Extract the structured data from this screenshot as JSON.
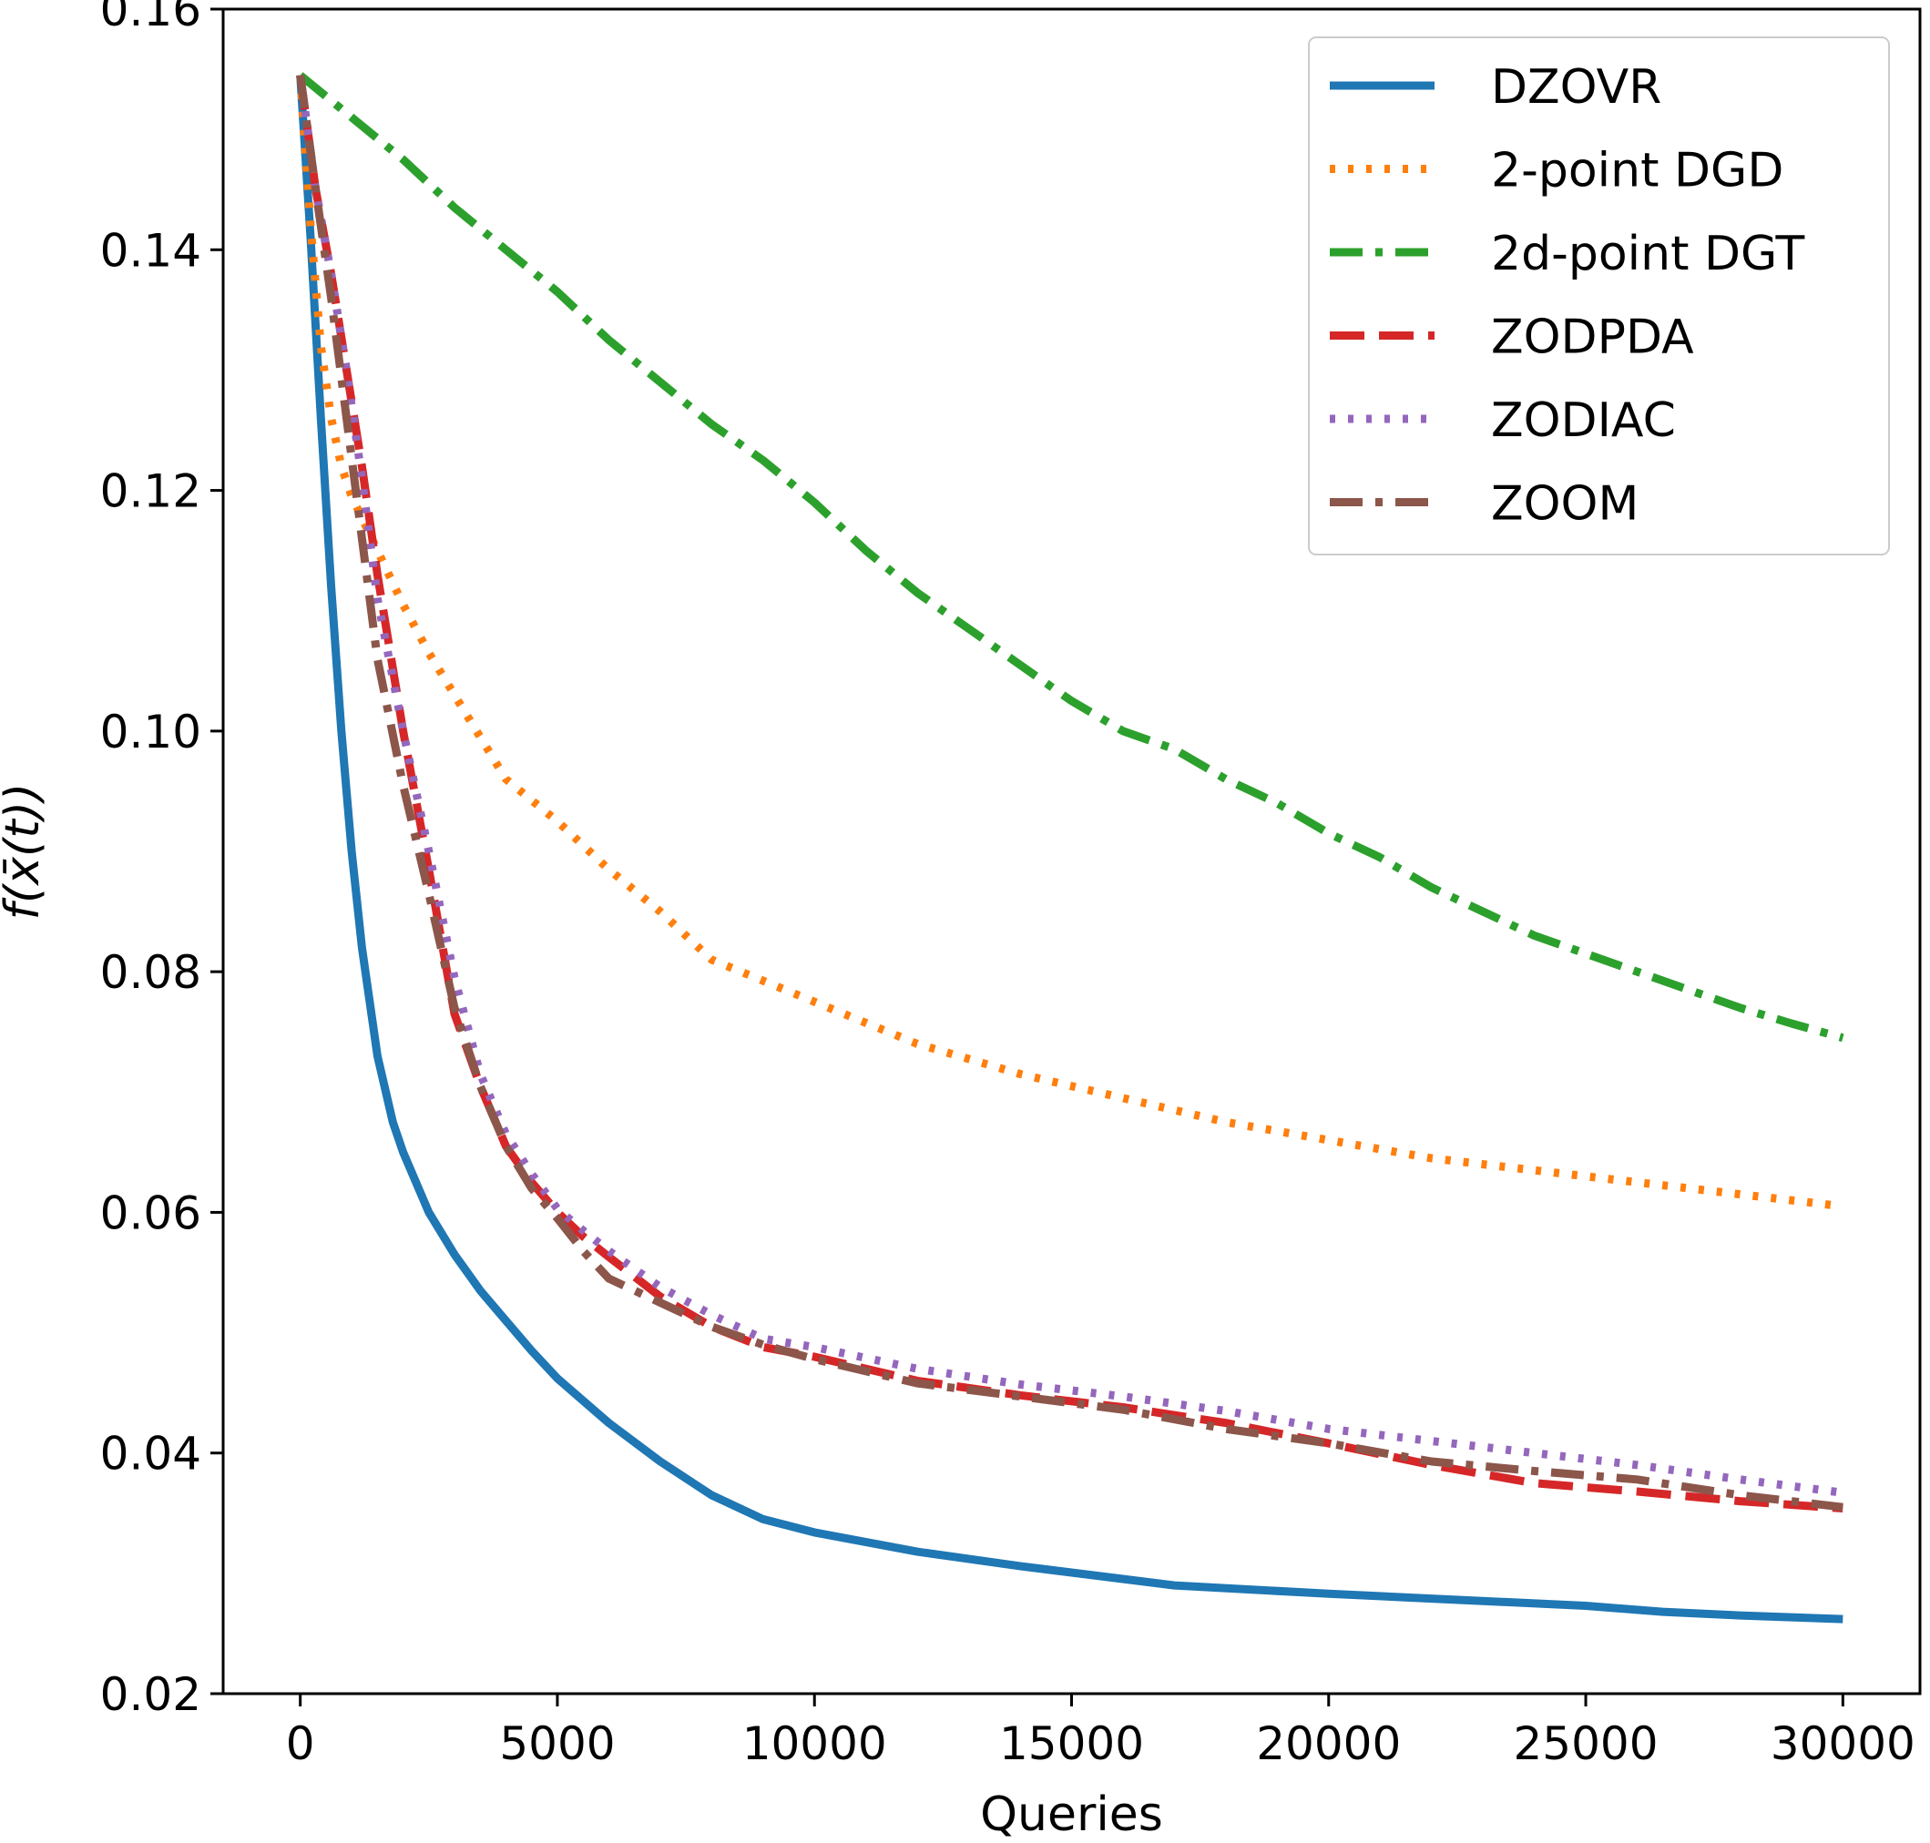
{
  "chart_data": {
    "type": "line",
    "title": "",
    "xlabel": "Queries",
    "ylabel": "f(x̄(t))",
    "xlim": [
      -1500,
      31500
    ],
    "ylim": [
      0.02,
      0.16
    ],
    "xticks": [
      0,
      5000,
      10000,
      15000,
      20000,
      25000,
      30000
    ],
    "xtick_labels": [
      "0",
      "5000",
      "10000",
      "15000",
      "20000",
      "25000",
      "30000"
    ],
    "yticks": [
      0.02,
      0.04,
      0.06,
      0.08,
      0.1,
      0.12,
      0.14,
      0.16
    ],
    "ytick_labels": [
      "0.02",
      "0.04",
      "0.06",
      "0.08",
      "0.10",
      "0.12",
      "0.14",
      "0.16"
    ],
    "grid": false,
    "legend_position": "top-right",
    "series": [
      {
        "name": "DZOVR",
        "color": "#1f77b4",
        "style": "solid",
        "x": [
          0,
          200,
          400,
          600,
          800,
          1000,
          1200,
          1500,
          1800,
          2000,
          2500,
          3000,
          3500,
          4000,
          4500,
          5000,
          6000,
          7000,
          8000,
          9000,
          10000,
          12000,
          14000,
          17000,
          20000,
          22000,
          25000,
          26500,
          28000,
          30000
        ],
        "y": [
          0.1545,
          0.141,
          0.126,
          0.112,
          0.1,
          0.09,
          0.082,
          0.073,
          0.0675,
          0.065,
          0.06,
          0.0565,
          0.0535,
          0.051,
          0.0485,
          0.0462,
          0.0425,
          0.0393,
          0.0365,
          0.0345,
          0.0334,
          0.0318,
          0.0306,
          0.029,
          0.0283,
          0.0279,
          0.0273,
          0.0268,
          0.0265,
          0.0262
        ]
      },
      {
        "name": "2-point DGD",
        "color": "#ff7f0e",
        "style": "dotted",
        "x": [
          0,
          200,
          400,
          600,
          800,
          1000,
          1500,
          2000,
          2500,
          3000,
          3500,
          4000,
          5000,
          6000,
          7000,
          8000,
          10000,
          12000,
          14000,
          16000,
          18000,
          20000,
          22000,
          24000,
          26000,
          28000,
          30000
        ],
        "y": [
          0.1545,
          0.142,
          0.132,
          0.126,
          0.122,
          0.1195,
          0.115,
          0.1105,
          0.1065,
          0.103,
          0.0995,
          0.096,
          0.0925,
          0.0885,
          0.085,
          0.081,
          0.0775,
          0.074,
          0.0715,
          0.0695,
          0.0675,
          0.066,
          0.0645,
          0.0635,
          0.0625,
          0.0615,
          0.0605
        ]
      },
      {
        "name": "2d-point DGT",
        "color": "#2ca02c",
        "style": "dashdot",
        "x": [
          0,
          1000,
          2000,
          3000,
          4000,
          5000,
          6000,
          7000,
          8000,
          9000,
          10000,
          11000,
          12000,
          13000,
          14000,
          15000,
          16000,
          17000,
          18000,
          19000,
          20000,
          21000,
          22000,
          23000,
          24000,
          25000,
          26000,
          27000,
          28000,
          29000,
          30000
        ],
        "y": [
          0.1545,
          0.151,
          0.1475,
          0.1435,
          0.14,
          0.1365,
          0.1325,
          0.129,
          0.1255,
          0.1225,
          0.119,
          0.115,
          0.1115,
          0.1085,
          0.1055,
          0.1025,
          0.1,
          0.0985,
          0.096,
          0.094,
          0.0915,
          0.0895,
          0.087,
          0.085,
          0.083,
          0.0815,
          0.08,
          0.0785,
          0.077,
          0.0757,
          0.0745
        ]
      },
      {
        "name": "ZODPDA",
        "color": "#d62728",
        "style": "dashed",
        "x": [
          0,
          300,
          600,
          900,
          1200,
          1500,
          2000,
          2500,
          3000,
          3500,
          4000,
          4500,
          5000,
          5500,
          6000,
          7000,
          8000,
          9000,
          10000,
          12000,
          14000,
          16000,
          18000,
          20000,
          22000,
          24000,
          26000,
          28000,
          30000
        ],
        "y": [
          0.1545,
          0.145,
          0.138,
          0.13,
          0.122,
          0.113,
          0.1,
          0.0885,
          0.0765,
          0.0705,
          0.0655,
          0.0625,
          0.06,
          0.058,
          0.0563,
          0.053,
          0.0505,
          0.0488,
          0.048,
          0.046,
          0.0448,
          0.0438,
          0.0425,
          0.0408,
          0.039,
          0.0375,
          0.0368,
          0.036,
          0.0354
        ]
      },
      {
        "name": "ZODIAC",
        "color": "#9467bd",
        "style": "dotted",
        "x": [
          0,
          300,
          600,
          900,
          1200,
          1500,
          2000,
          2500,
          3000,
          3500,
          4000,
          4500,
          5000,
          5500,
          6000,
          7000,
          8000,
          9000,
          10000,
          12000,
          14000,
          16000,
          18000,
          20000,
          22000,
          24000,
          26000,
          28000,
          30000
        ],
        "y": [
          0.1545,
          0.145,
          0.138,
          0.13,
          0.121,
          0.111,
          0.1,
          0.09,
          0.0795,
          0.0715,
          0.0665,
          0.0632,
          0.0603,
          0.0585,
          0.0568,
          0.0538,
          0.0515,
          0.0495,
          0.0488,
          0.047,
          0.0457,
          0.0447,
          0.0435,
          0.042,
          0.041,
          0.04,
          0.039,
          0.0378,
          0.0367
        ]
      },
      {
        "name": "ZOOM",
        "color": "#8c564b",
        "style": "dashdot",
        "x": [
          0,
          300,
          600,
          900,
          1200,
          1500,
          2000,
          2500,
          3000,
          3500,
          4000,
          4500,
          5000,
          5500,
          6000,
          7000,
          8000,
          9000,
          10000,
          12000,
          14000,
          16000,
          18000,
          20000,
          22000,
          24000,
          26000,
          28000,
          30000
        ],
        "y": [
          0.1545,
          0.145,
          0.136,
          0.126,
          0.116,
          0.106,
          0.0955,
          0.0865,
          0.077,
          0.0705,
          0.0655,
          0.062,
          0.0595,
          0.0568,
          0.0545,
          0.0525,
          0.0505,
          0.049,
          0.0478,
          0.0458,
          0.0447,
          0.0436,
          0.042,
          0.0408,
          0.0393,
          0.0385,
          0.0378,
          0.0365,
          0.0355
        ]
      }
    ]
  }
}
